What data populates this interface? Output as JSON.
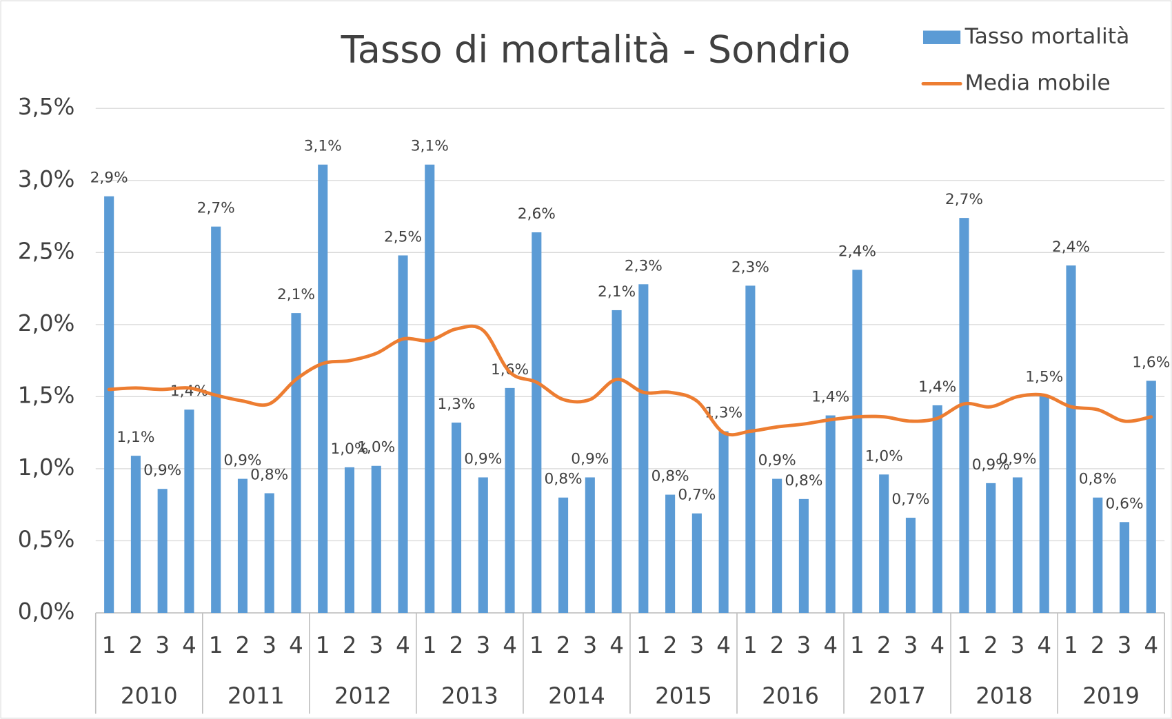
{
  "chart_data": {
    "type": "bar-line",
    "title": "Tasso di mortalità - Sondrio",
    "categories": [
      "1",
      "2",
      "3",
      "4",
      "1",
      "2",
      "3",
      "4",
      "1",
      "2",
      "3",
      "4",
      "1",
      "2",
      "3",
      "4",
      "1",
      "2",
      "3",
      "4",
      "1",
      "2",
      "3",
      "4",
      "1",
      "2",
      "3",
      "4",
      "1",
      "2",
      "3",
      "4",
      "1",
      "2",
      "3",
      "4",
      "1",
      "2",
      "3",
      "4"
    ],
    "groups": [
      "2010",
      "2011",
      "2012",
      "2013",
      "2014",
      "2015",
      "2016",
      "2017",
      "2018",
      "2019"
    ],
    "series": [
      {
        "name": "Tasso mortalità",
        "type": "bar",
        "color": "#5b9bd5",
        "values": [
          2.89,
          1.09,
          0.86,
          1.41,
          2.68,
          0.93,
          0.83,
          2.08,
          3.11,
          1.01,
          1.02,
          2.48,
          3.11,
          1.32,
          0.94,
          1.56,
          2.64,
          0.8,
          0.94,
          2.1,
          2.28,
          0.82,
          0.69,
          1.26,
          2.27,
          0.93,
          0.79,
          1.37,
          2.38,
          0.96,
          0.66,
          1.44,
          2.74,
          0.9,
          0.94,
          1.51,
          2.41,
          0.8,
          0.63,
          1.61
        ],
        "value_labels": [
          "2,9%",
          "1,1%",
          "0,9%",
          "1,4%",
          "2,7%",
          "0,9%",
          "0,8%",
          "2,1%",
          "3,1%",
          "1,0%",
          "1,0%",
          "2,5%",
          "3,1%",
          "1,3%",
          "0,9%",
          "1,6%",
          "2,6%",
          "0,8%",
          "0,9%",
          "2,1%",
          "2,3%",
          "0,8%",
          "0,7%",
          "1,3%",
          "2,3%",
          "0,9%",
          "0,8%",
          "1,4%",
          "2,4%",
          "1,0%",
          "0,7%",
          "1,4%",
          "2,7%",
          "0,9%",
          "0,9%",
          "1,5%",
          "2,4%",
          "0,8%",
          "0,6%",
          "1,6%"
        ]
      },
      {
        "name": "Media mobile",
        "type": "line",
        "color": "#ed7d31",
        "values": [
          1.55,
          1.56,
          1.55,
          1.56,
          1.51,
          1.47,
          1.45,
          1.62,
          1.73,
          1.75,
          1.8,
          1.9,
          1.89,
          1.97,
          1.96,
          1.67,
          1.6,
          1.48,
          1.48,
          1.62,
          1.53,
          1.53,
          1.47,
          1.25,
          1.26,
          1.29,
          1.31,
          1.34,
          1.36,
          1.36,
          1.33,
          1.35,
          1.45,
          1.43,
          1.5,
          1.51,
          1.43,
          1.41,
          1.33,
          1.36
        ]
      }
    ],
    "ylim": [
      0,
      3.5
    ],
    "yticks": [
      {
        "value": 0,
        "label": "0,0%"
      },
      {
        "value": 0.5,
        "label": "0,5%"
      },
      {
        "value": 1,
        "label": "1,0%"
      },
      {
        "value": 1.5,
        "label": "1,5%"
      },
      {
        "value": 2,
        "label": "2,0%"
      },
      {
        "value": 2.5,
        "label": "2,5%"
      },
      {
        "value": 3,
        "label": "3,0%"
      },
      {
        "value": 3.5,
        "label": "3,5%"
      }
    ],
    "grid": true,
    "legend": "top-right"
  }
}
